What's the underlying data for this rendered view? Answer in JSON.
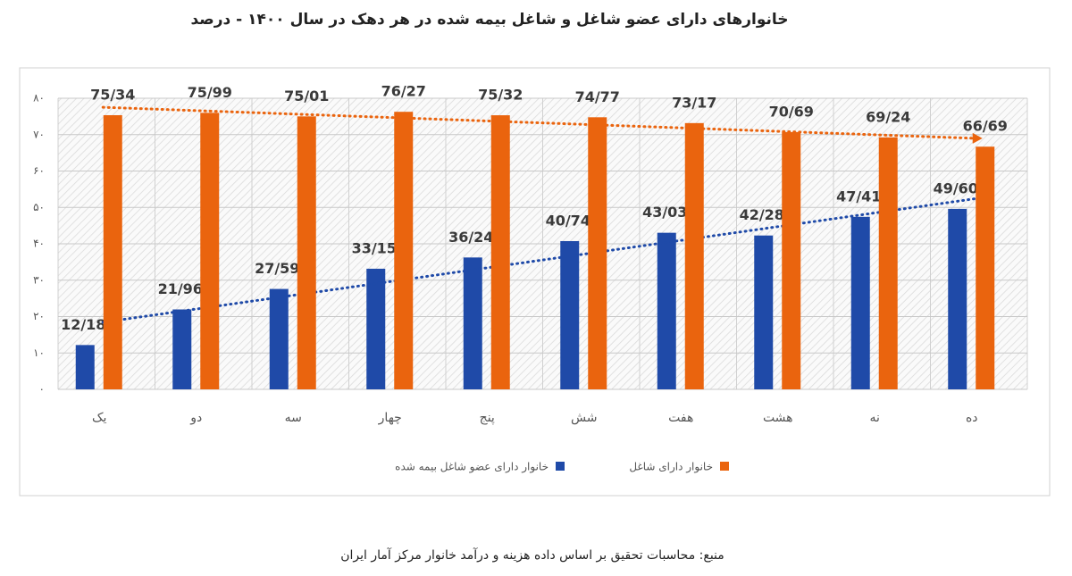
{
  "chart_data": {
    "type": "bar",
    "title": "خانوارهای دارای عضو شاغل و شاغل بیمه شده در هر دهک در سال ۱۴۰۰ - درصد",
    "categories": [
      "یک",
      "دو",
      "سه",
      "چهار",
      "پنج",
      "شش",
      "هفت",
      "هشت",
      "نه",
      "ده"
    ],
    "series": [
      {
        "name": "خانوار دارای عضو شاغل بیمه شده",
        "color": "#1f4aa8",
        "values": [
          12.18,
          21.96,
          27.59,
          33.15,
          36.24,
          40.74,
          43.03,
          42.28,
          47.41,
          49.6
        ],
        "value_labels": [
          "12/18",
          "21/96",
          "27/59",
          "33/15",
          "36/24",
          "40/74",
          "43/03",
          "42/28",
          "47/41",
          "49/60"
        ],
        "trendline": true
      },
      {
        "name": "خانوار دارای شاغل",
        "color": "#ea640e",
        "values": [
          75.34,
          75.99,
          75.01,
          76.27,
          75.32,
          74.77,
          73.17,
          70.69,
          69.24,
          66.69
        ],
        "value_labels": [
          "75/34",
          "75/99",
          "75/01",
          "76/27",
          "75/32",
          "74/77",
          "73/17",
          "70/69",
          "69/24",
          "66/69"
        ],
        "trendline": true
      }
    ],
    "ylim": [
      0,
      80
    ],
    "yticks": [
      {
        "value": 0,
        "label": "۰"
      },
      {
        "value": 10,
        "label": "۱۰"
      },
      {
        "value": 20,
        "label": "۲۰"
      },
      {
        "value": 30,
        "label": "۳۰"
      },
      {
        "value": 40,
        "label": "۴۰"
      },
      {
        "value": 50,
        "label": "۵۰"
      },
      {
        "value": 60,
        "label": "۶۰"
      },
      {
        "value": 70,
        "label": "۷۰"
      },
      {
        "value": 80,
        "label": "۸۰"
      }
    ],
    "grid": true,
    "source": "منبع: محاسبات تحقیق بر اساس داده هزینه و درآمد خانوار مرکز آمار ایران"
  }
}
